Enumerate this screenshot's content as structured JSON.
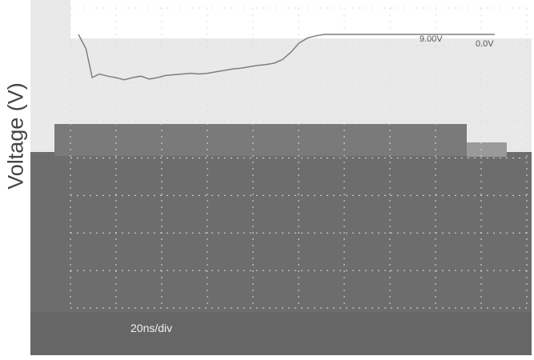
{
  "chart_data": {
    "type": "line",
    "title": "",
    "xlabel": "",
    "ylabel": "Voltage (V)",
    "time_scale": "20ns/div",
    "marker_labels": [
      "9.00V",
      "0.0V"
    ],
    "series": [
      {
        "name": "",
        "x_div": [
          0.0,
          0.18,
          0.33,
          0.5,
          0.7,
          0.9,
          1.1,
          1.3,
          1.5,
          1.7,
          1.9,
          2.1,
          2.3,
          2.5,
          2.7,
          2.9,
          3.1,
          3.3,
          3.5,
          3.7,
          3.9,
          4.1,
          4.3,
          4.5,
          4.7,
          4.9,
          5.1,
          5.3,
          5.5,
          5.7,
          5.9,
          6.1,
          6.3,
          6.5,
          6.7,
          6.9,
          7.1,
          7.3,
          7.5,
          7.7,
          7.9,
          8.1,
          8.3,
          8.5,
          8.7,
          8.9,
          9.1,
          9.3,
          9.5,
          9.7,
          9.9,
          10.0
        ],
        "y_div": [
          0.3,
          0.1,
          -0.3,
          -0.25,
          -0.28,
          -0.3,
          -0.33,
          -0.3,
          -0.28,
          -0.32,
          -0.3,
          -0.27,
          -0.26,
          -0.25,
          -0.24,
          -0.25,
          -0.24,
          -0.22,
          -0.2,
          -0.18,
          -0.17,
          -0.15,
          -0.13,
          -0.12,
          -0.1,
          -0.05,
          0.05,
          0.18,
          0.25,
          0.28,
          0.3,
          0.3,
          0.3,
          0.3,
          0.3,
          0.3,
          0.3,
          0.3,
          0.3,
          0.3,
          0.3,
          0.3,
          0.3,
          0.3,
          0.3,
          0.3,
          0.3,
          0.3,
          0.3,
          0.3,
          0.3,
          0.3
        ]
      }
    ],
    "grid": true,
    "legend": "none"
  }
}
